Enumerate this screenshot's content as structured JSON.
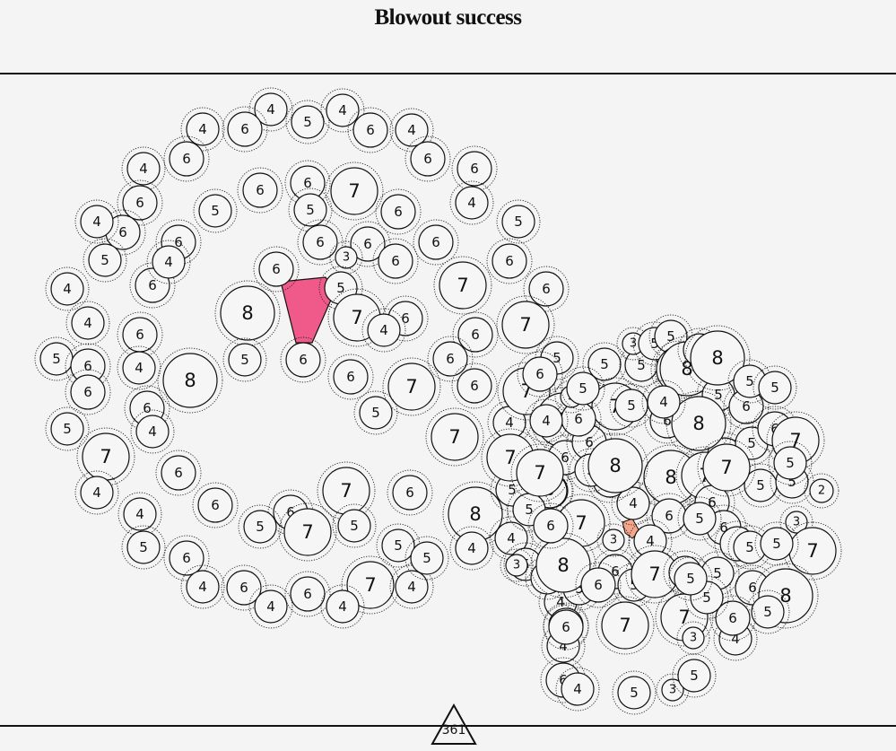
{
  "title": "Blowout success",
  "score": "361",
  "colors": {
    "background": "#f5f4f5",
    "bubble_fill": "#f7f6f7",
    "stroke": "#111111",
    "selection_pink": "#ef5a8a",
    "selection_salmon": "#f4a58a"
  },
  "counter_icon": "triangle-icon",
  "bubbles": [
    {
      "v": "4"
    },
    {
      "v": "5"
    },
    {
      "v": "4"
    },
    {
      "v": "4"
    },
    {
      "v": "6"
    },
    {
      "v": "6"
    },
    {
      "v": "4"
    },
    {
      "v": "6"
    },
    {
      "v": "6"
    },
    {
      "v": "4"
    },
    {
      "v": "6"
    },
    {
      "v": "4"
    },
    {
      "v": "6"
    },
    {
      "v": "7"
    },
    {
      "v": "6"
    },
    {
      "v": "6"
    },
    {
      "v": "5"
    },
    {
      "v": "6"
    },
    {
      "v": "5"
    },
    {
      "v": "6"
    },
    {
      "v": "4"
    },
    {
      "v": "5"
    },
    {
      "v": "5"
    },
    {
      "v": "6"
    },
    {
      "v": "6"
    },
    {
      "v": "6"
    },
    {
      "v": "6"
    },
    {
      "v": "3"
    },
    {
      "v": "6"
    },
    {
      "v": "6"
    },
    {
      "v": "6"
    },
    {
      "v": "4"
    },
    {
      "v": "6"
    },
    {
      "v": "5"
    },
    {
      "v": "7"
    },
    {
      "v": "7"
    },
    {
      "v": "6"
    },
    {
      "v": "4"
    },
    {
      "v": "6"
    },
    {
      "v": "4"
    },
    {
      "v": "8"
    },
    {
      "v": "7"
    },
    {
      "v": "4"
    },
    {
      "v": "6"
    },
    {
      "v": "6"
    },
    {
      "v": "5"
    },
    {
      "v": "6"
    },
    {
      "v": "6"
    },
    {
      "v": "6"
    },
    {
      "v": "6"
    },
    {
      "v": "5"
    },
    {
      "v": "8"
    },
    {
      "v": "4"
    },
    {
      "v": "6"
    },
    {
      "v": "6"
    },
    {
      "v": "7"
    },
    {
      "v": "5"
    },
    {
      "v": "6"
    },
    {
      "v": "5"
    },
    {
      "v": "4"
    },
    {
      "v": "4"
    },
    {
      "v": "7"
    },
    {
      "v": "7"
    },
    {
      "v": "7"
    },
    {
      "v": "4"
    },
    {
      "v": "6"
    },
    {
      "v": "6"
    },
    {
      "v": "4"
    },
    {
      "v": "6"
    },
    {
      "v": "5"
    },
    {
      "v": "6"
    },
    {
      "v": "7"
    },
    {
      "v": "5"
    },
    {
      "v": "6"
    },
    {
      "v": "6"
    },
    {
      "v": "7"
    },
    {
      "v": "5"
    },
    {
      "v": "4"
    },
    {
      "v": "5"
    },
    {
      "v": "8"
    },
    {
      "v": "7"
    },
    {
      "v": "4"
    },
    {
      "v": "4"
    },
    {
      "v": "6"
    },
    {
      "v": "5"
    },
    {
      "v": "4"
    },
    {
      "v": "5"
    },
    {
      "v": "4"
    },
    {
      "v": "6"
    },
    {
      "v": "7"
    },
    {
      "v": "4"
    },
    {
      "v": "5"
    },
    {
      "v": "4"
    },
    {
      "v": "3"
    },
    {
      "v": "6"
    },
    {
      "v": "5"
    },
    {
      "v": "5"
    },
    {
      "v": "5"
    },
    {
      "v": "8"
    },
    {
      "v": "5"
    },
    {
      "v": "5"
    },
    {
      "v": "7"
    },
    {
      "v": "5"
    },
    {
      "v": "3"
    },
    {
      "v": "5"
    },
    {
      "v": "5"
    },
    {
      "v": "6"
    },
    {
      "v": "7"
    },
    {
      "v": "8"
    },
    {
      "v": "5"
    },
    {
      "v": "5"
    },
    {
      "v": "8"
    },
    {
      "v": "6"
    },
    {
      "v": "5"
    },
    {
      "v": "6"
    },
    {
      "v": "5"
    },
    {
      "v": "5"
    },
    {
      "v": "6"
    },
    {
      "v": "5"
    },
    {
      "v": "5"
    },
    {
      "v": "8"
    },
    {
      "v": "6"
    },
    {
      "v": "8"
    },
    {
      "v": "7"
    },
    {
      "v": "6"
    },
    {
      "v": "4"
    },
    {
      "v": "7"
    },
    {
      "v": "6"
    },
    {
      "v": "5"
    },
    {
      "v": "4"
    },
    {
      "v": "3"
    },
    {
      "v": "8"
    },
    {
      "v": "7"
    },
    {
      "v": "4"
    },
    {
      "v": "6"
    },
    {
      "v": "5"
    },
    {
      "v": "6"
    },
    {
      "v": "5"
    },
    {
      "v": "7"
    },
    {
      "v": "7"
    },
    {
      "v": "3"
    },
    {
      "v": "4"
    },
    {
      "v": "4"
    },
    {
      "v": "6"
    },
    {
      "v": "6"
    },
    {
      "v": "6"
    },
    {
      "v": "5"
    },
    {
      "v": "6"
    },
    {
      "v": "6"
    },
    {
      "v": "6"
    },
    {
      "v": "6"
    },
    {
      "v": "6"
    },
    {
      "v": "5"
    },
    {
      "v": "7"
    },
    {
      "v": "4"
    },
    {
      "v": "6"
    },
    {
      "v": "3"
    },
    {
      "v": "5"
    },
    {
      "v": "5"
    },
    {
      "v": "4"
    },
    {
      "v": "6"
    },
    {
      "v": "4"
    },
    {
      "v": "5"
    },
    {
      "v": "3"
    },
    {
      "v": "5"
    },
    {
      "v": "2"
    },
    {
      "v": "3"
    },
    {
      "v": "7"
    },
    {
      "v": "6"
    },
    {
      "v": "8"
    },
    {
      "v": "7"
    },
    {
      "v": "5"
    },
    {
      "v": "5"
    },
    {
      "v": "5"
    },
    {
      "v": "6"
    },
    {
      "v": "5"
    },
    {
      "v": "5"
    },
    {
      "v": "5"
    },
    {
      "v": "7"
    },
    {
      "v": "8"
    }
  ]
}
